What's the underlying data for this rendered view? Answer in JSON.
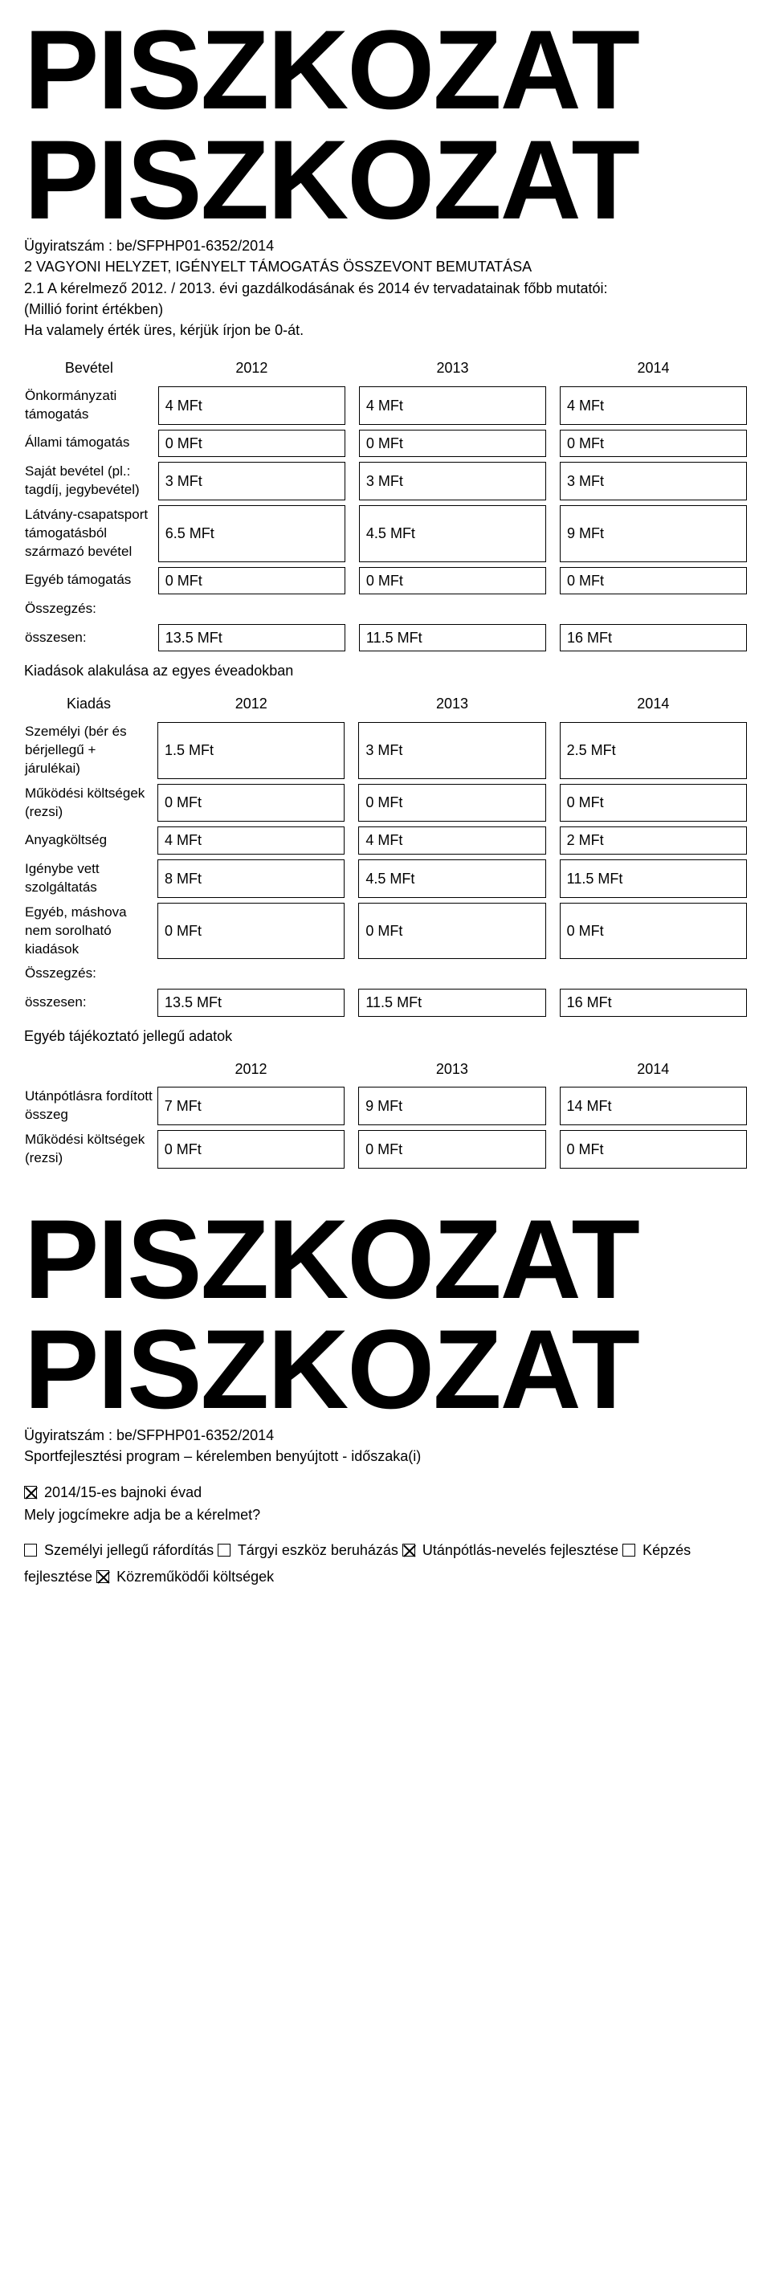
{
  "watermark": "PISZKOZAT",
  "case_number_label": "Ügyiratszám : be/SFPHP01-6352/2014",
  "section2_title": "2 VAGYONI HELYZET, IGÉNYELT TÁMOGATÁS ÖSSZEVONT BEMUTATÁSA",
  "section2_1": "2.1 A kérelmező 2012. / 2013. évi gazdálkodásának és 2014 év tervadatainak főbb mutatói:",
  "currency_note": "(Millió forint értékben)",
  "empty_note": "Ha valamely érték üres, kérjük írjon be 0-át.",
  "bevetel_label": "Bevétel",
  "years": [
    "2012",
    "2013",
    "2014"
  ],
  "r_onkorm": {
    "label": "Önkormányzati támogatás",
    "v": [
      "4 MFt",
      "4 MFt",
      "4 MFt"
    ]
  },
  "r_allami": {
    "label": "Állami támogatás",
    "v": [
      "0 MFt",
      "0 MFt",
      "0 MFt"
    ]
  },
  "r_sajat": {
    "label": "Saját bevétel (pl.: tagdíj, jegybevétel)",
    "v": [
      "3 MFt",
      "3 MFt",
      "3 MFt"
    ]
  },
  "r_latvany": {
    "label": "Látvány-csapatsport támogatásból származó bevétel",
    "v": [
      "6.5 MFt",
      "4.5 MFt",
      "9 MFt"
    ]
  },
  "r_egyeb": {
    "label": "Egyéb támogatás",
    "v": [
      "0 MFt",
      "0 MFt",
      "0 MFt"
    ]
  },
  "osszegzes": "Összegzés:",
  "r_bev_total": {
    "label": "összesen:",
    "v": [
      "13.5 MFt",
      "11.5 MFt",
      "16 MFt"
    ]
  },
  "kiadas_intro": "Kiadások alakulása az egyes éveadokban",
  "kiadas_label": "Kiadás",
  "r_szemelyi": {
    "label": "Személyi (bér és bérjellegű + járulékai)",
    "v": [
      "1.5 MFt",
      "3 MFt",
      "2.5 MFt"
    ]
  },
  "r_mukodesi": {
    "label": "Működési költségek (rezsi)",
    "v": [
      "0 MFt",
      "0 MFt",
      "0 MFt"
    ]
  },
  "r_anyag": {
    "label": "Anyagköltség",
    "v": [
      "4 MFt",
      "4 MFt",
      "2 MFt"
    ]
  },
  "r_igenybe": {
    "label": "Igénybe vett szolgáltatás",
    "v": [
      "8 MFt",
      "4.5 MFt",
      "11.5 MFt"
    ]
  },
  "r_egyebk": {
    "label": "Egyéb, máshova nem sorolható kiadások",
    "v": [
      "0 MFt",
      "0 MFt",
      "0 MFt"
    ]
  },
  "r_kiad_total": {
    "label": "összesen:",
    "v": [
      "13.5 MFt",
      "11.5 MFt",
      "16 MFt"
    ]
  },
  "egyeb_adatok": "Egyéb tájékoztató jellegű adatok",
  "r_utanpotlas": {
    "label": "Utánpótlásra fordított összeg",
    "v": [
      "7 MFt",
      "9 MFt",
      "14 MFt"
    ]
  },
  "r_mukodesi2": {
    "label": "Működési költségek (rezsi)",
    "v": [
      "0 MFt",
      "0 MFt",
      "0 MFt"
    ]
  },
  "sport_title": "Sportfejlesztési program – kérelemben benyújtott - időszaka(i)",
  "evad_label": "2014/15-es bajnoki évad",
  "jogcim_q": "Mely jogcímekre adja be a kérelmet?",
  "cb_szemelyi": "Személyi jellegű ráfordítás ",
  "cb_targyi": "Tárgyi eszköz beruházás ",
  "cb_utanpotlas": "Utánpótlás-nevelés fejlesztése ",
  "cb_kepzes": "Képzés fejlesztése ",
  "cb_kozremukodoi": "Közreműködői költségek"
}
